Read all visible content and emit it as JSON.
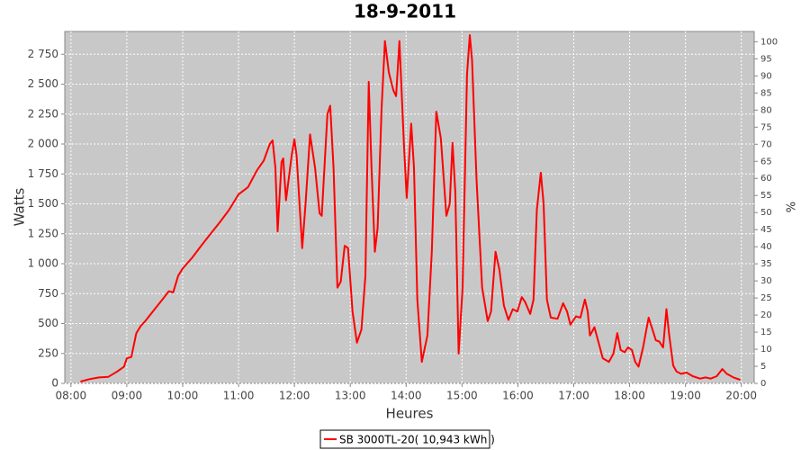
{
  "chart_data": {
    "type": "line",
    "title": "18-9-2011",
    "xlabel": "Heures",
    "ylabel": "Watts",
    "y2label": "%",
    "x": [
      8.17,
      8.33,
      8.5,
      8.67,
      8.83,
      8.95,
      9.0,
      9.08,
      9.17,
      9.25,
      9.33,
      9.5,
      9.67,
      9.75,
      9.83,
      9.92,
      10.0,
      10.17,
      10.33,
      10.5,
      10.67,
      10.83,
      11.0,
      11.17,
      11.33,
      11.45,
      11.56,
      11.61,
      11.66,
      11.7,
      11.77,
      11.8,
      11.85,
      11.95,
      12.0,
      12.04,
      12.14,
      12.2,
      12.28,
      12.37,
      12.45,
      12.49,
      12.59,
      12.64,
      12.7,
      12.77,
      12.83,
      12.9,
      12.96,
      13.04,
      13.12,
      13.2,
      13.27,
      13.33,
      13.38,
      13.44,
      13.49,
      13.56,
      13.62,
      13.69,
      13.77,
      13.82,
      13.88,
      13.96,
      14.01,
      14.09,
      14.14,
      14.2,
      14.28,
      14.38,
      14.46,
      14.54,
      14.62,
      14.72,
      14.78,
      14.83,
      14.88,
      14.94,
      15.01,
      15.09,
      15.14,
      15.18,
      15.26,
      15.36,
      15.46,
      15.52,
      15.6,
      15.67,
      15.75,
      15.83,
      15.91,
      15.99,
      16.07,
      16.13,
      16.22,
      16.28,
      16.34,
      16.41,
      16.46,
      16.52,
      16.59,
      16.71,
      16.81,
      16.88,
      16.94,
      17.04,
      17.12,
      17.2,
      17.25,
      17.29,
      17.37,
      17.44,
      17.52,
      17.63,
      17.71,
      17.78,
      17.84,
      17.91,
      17.97,
      18.04,
      18.1,
      18.16,
      18.24,
      18.34,
      18.41,
      18.47,
      18.53,
      18.6,
      18.66,
      18.71,
      18.78,
      18.84,
      18.92,
      19.02,
      19.13,
      19.26,
      19.36,
      19.45,
      19.56,
      19.66,
      19.74,
      19.86,
      19.98
    ],
    "series": [
      {
        "name": "SB 3000TL-20( 10,943 kWh )",
        "color": "#ff0000",
        "values": [
          15,
          35,
          50,
          55,
          100,
          140,
          210,
          220,
          420,
          480,
          520,
          620,
          720,
          770,
          760,
          900,
          960,
          1050,
          1150,
          1250,
          1350,
          1450,
          1580,
          1640,
          1780,
          1860,
          2000,
          2030,
          1800,
          1270,
          1850,
          1880,
          1530,
          1900,
          2040,
          1900,
          1130,
          1500,
          2080,
          1800,
          1420,
          1400,
          2250,
          2320,
          1800,
          800,
          850,
          1150,
          1130,
          600,
          340,
          450,
          900,
          2520,
          1800,
          1100,
          1300,
          2300,
          2860,
          2600,
          2450,
          2400,
          2860,
          2000,
          1550,
          2170,
          1800,
          700,
          180,
          400,
          1100,
          2270,
          2050,
          1400,
          1500,
          2010,
          1600,
          250,
          800,
          2580,
          2910,
          2700,
          1700,
          800,
          520,
          600,
          1100,
          950,
          650,
          530,
          620,
          600,
          720,
          680,
          580,
          700,
          1450,
          1760,
          1500,
          700,
          550,
          540,
          670,
          600,
          490,
          560,
          550,
          700,
          600,
          400,
          470,
          350,
          210,
          180,
          250,
          420,
          280,
          260,
          300,
          280,
          180,
          140,
          300,
          550,
          450,
          360,
          350,
          300,
          620,
          400,
          150,
          100,
          80,
          90,
          60,
          40,
          50,
          40,
          60,
          120,
          80,
          50,
          30
        ]
      }
    ],
    "xlim": [
      7.89,
      20.23
    ],
    "xticks": [
      {
        "value": 8,
        "label": "08:00"
      },
      {
        "value": 9,
        "label": "09:00"
      },
      {
        "value": 10,
        "label": "10:00"
      },
      {
        "value": 11,
        "label": "11:00"
      },
      {
        "value": 12,
        "label": "12:00"
      },
      {
        "value": 13,
        "label": "13:00"
      },
      {
        "value": 14,
        "label": "14:00"
      },
      {
        "value": 15,
        "label": "15:00"
      },
      {
        "value": 16,
        "label": "16:00"
      },
      {
        "value": 17,
        "label": "17:00"
      },
      {
        "value": 18,
        "label": "18:00"
      },
      {
        "value": 19,
        "label": "19:00"
      },
      {
        "value": 20,
        "label": "20:00"
      }
    ],
    "ylim": [
      0,
      2940
    ],
    "yticks": [
      0,
      250,
      500,
      750,
      {
        "value": 1000,
        "label": "1 000"
      },
      {
        "value": 1250,
        "label": "1 250"
      },
      {
        "value": 1500,
        "label": "1 500"
      },
      {
        "value": 1750,
        "label": "1 750"
      },
      {
        "value": 2000,
        "label": "2 000"
      },
      {
        "value": 2250,
        "label": "2 250"
      },
      {
        "value": 2500,
        "label": "2 500"
      },
      {
        "value": 2750,
        "label": "2 750"
      }
    ],
    "y2lim": [
      0,
      103
    ],
    "y2ticks": [
      0,
      5,
      10,
      15,
      20,
      25,
      30,
      35,
      40,
      45,
      50,
      55,
      60,
      65,
      70,
      75,
      80,
      85,
      90,
      95,
      100
    ],
    "grid": true
  }
}
